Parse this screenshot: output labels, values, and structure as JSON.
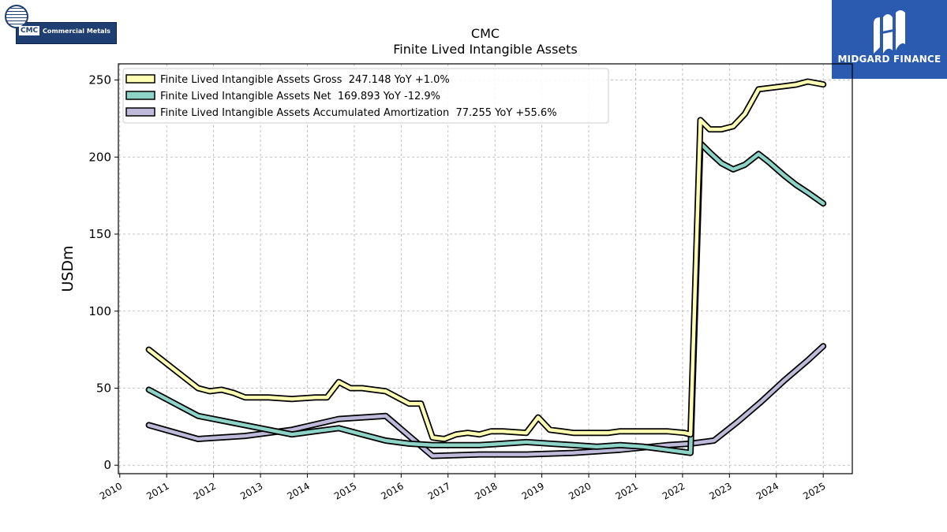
{
  "logos": {
    "company_ticker": "CMC",
    "company_name": "Commercial Metals",
    "brand": "MIDGARD FINANCE"
  },
  "colors": {
    "gross": "#ffffb3",
    "net": "#8dd3c7",
    "amortization": "#bebada",
    "outline": "#000000",
    "brand_blue": "#2a5bb0"
  },
  "chart_data": {
    "type": "line",
    "title": "CMC",
    "subtitle": "Finite Lived Intangible Assets",
    "ylabel": "USDm",
    "xlabel": "",
    "xlim": [
      2009.97,
      2025.62
    ],
    "ylim": [
      -5.5,
      260.5
    ],
    "x_ticks": [
      2010,
      2011,
      2012,
      2013,
      2014,
      2015,
      2016,
      2017,
      2018,
      2019,
      2020,
      2021,
      2022,
      2023,
      2024,
      2025
    ],
    "y_ticks": [
      0,
      50,
      100,
      150,
      200,
      250
    ],
    "grid": true,
    "legend_position": "top-left",
    "series": [
      {
        "name": "Finite Lived Intangible Assets Gross",
        "legend": "Finite Lived Intangible Assets Gross  247.148 YoY +1.0%",
        "color_key": "gross",
        "points": [
          [
            2010.62,
            75
          ],
          [
            2011.67,
            50
          ],
          [
            2011.92,
            48
          ],
          [
            2012.17,
            49
          ],
          [
            2012.42,
            47
          ],
          [
            2012.67,
            44
          ],
          [
            2013.17,
            44
          ],
          [
            2013.67,
            43
          ],
          [
            2014.17,
            44
          ],
          [
            2014.42,
            44
          ],
          [
            2014.67,
            54
          ],
          [
            2014.92,
            50
          ],
          [
            2015.17,
            50
          ],
          [
            2015.42,
            49
          ],
          [
            2015.67,
            48
          ],
          [
            2016.17,
            40
          ],
          [
            2016.42,
            40
          ],
          [
            2016.67,
            18
          ],
          [
            2016.92,
            17
          ],
          [
            2017.17,
            20
          ],
          [
            2017.42,
            21
          ],
          [
            2017.67,
            20
          ],
          [
            2017.92,
            22
          ],
          [
            2018.17,
            22
          ],
          [
            2018.67,
            21
          ],
          [
            2018.92,
            31
          ],
          [
            2019.17,
            23
          ],
          [
            2019.42,
            22
          ],
          [
            2019.67,
            21
          ],
          [
            2020.17,
            21
          ],
          [
            2020.42,
            21
          ],
          [
            2020.67,
            22
          ],
          [
            2021.17,
            22
          ],
          [
            2021.42,
            22
          ],
          [
            2021.67,
            22
          ],
          [
            2022.04,
            21
          ],
          [
            2022.17,
            20
          ],
          [
            2022.38,
            224
          ],
          [
            2022.58,
            218
          ],
          [
            2022.83,
            218
          ],
          [
            2023.08,
            220
          ],
          [
            2023.33,
            228
          ],
          [
            2023.62,
            244
          ],
          [
            2024.17,
            246
          ],
          [
            2024.42,
            247
          ],
          [
            2024.67,
            249
          ],
          [
            2025.0,
            247.148
          ]
        ]
      },
      {
        "name": "Finite Lived Intangible Assets Net",
        "legend": "Finite Lived Intangible Assets Net  169.893 YoY -12.9%",
        "color_key": "net",
        "points": [
          [
            2010.62,
            49
          ],
          [
            2011.67,
            32
          ],
          [
            2012.17,
            29
          ],
          [
            2012.67,
            26
          ],
          [
            2013.17,
            23
          ],
          [
            2013.67,
            20
          ],
          [
            2014.17,
            22
          ],
          [
            2014.67,
            24
          ],
          [
            2015.17,
            20
          ],
          [
            2015.67,
            16
          ],
          [
            2016.17,
            14
          ],
          [
            2016.67,
            13
          ],
          [
            2017.17,
            13
          ],
          [
            2017.67,
            13
          ],
          [
            2018.17,
            14
          ],
          [
            2018.67,
            15
          ],
          [
            2019.17,
            14
          ],
          [
            2019.67,
            13
          ],
          [
            2020.17,
            12
          ],
          [
            2020.67,
            13
          ],
          [
            2021.17,
            12
          ],
          [
            2021.67,
            10
          ],
          [
            2022.17,
            8
          ],
          [
            2022.38,
            209
          ],
          [
            2022.58,
            203
          ],
          [
            2022.83,
            196
          ],
          [
            2023.08,
            192
          ],
          [
            2023.33,
            195
          ],
          [
            2023.62,
            202
          ],
          [
            2023.83,
            197
          ],
          [
            2024.17,
            188
          ],
          [
            2024.42,
            182
          ],
          [
            2024.67,
            177
          ],
          [
            2025.0,
            169.893
          ]
        ]
      },
      {
        "name": "Finite Lived Intangible Assets Accumulated Amortization",
        "legend": "Finite Lived Intangible Assets Accumulated Amortization  77.255 YoY +55.6%",
        "color_key": "amortization",
        "points": [
          [
            2010.62,
            26
          ],
          [
            2011.67,
            17
          ],
          [
            2012.67,
            19
          ],
          [
            2013.67,
            23
          ],
          [
            2014.67,
            30
          ],
          [
            2015.67,
            32
          ],
          [
            2016.67,
            6
          ],
          [
            2017.67,
            7
          ],
          [
            2018.67,
            7
          ],
          [
            2019.67,
            8
          ],
          [
            2020.67,
            10
          ],
          [
            2021.67,
            13
          ],
          [
            2022.17,
            14
          ],
          [
            2022.67,
            16
          ],
          [
            2023.17,
            28
          ],
          [
            2023.67,
            41
          ],
          [
            2024.17,
            55
          ],
          [
            2024.67,
            68
          ],
          [
            2025.0,
            77.255
          ]
        ]
      }
    ]
  }
}
